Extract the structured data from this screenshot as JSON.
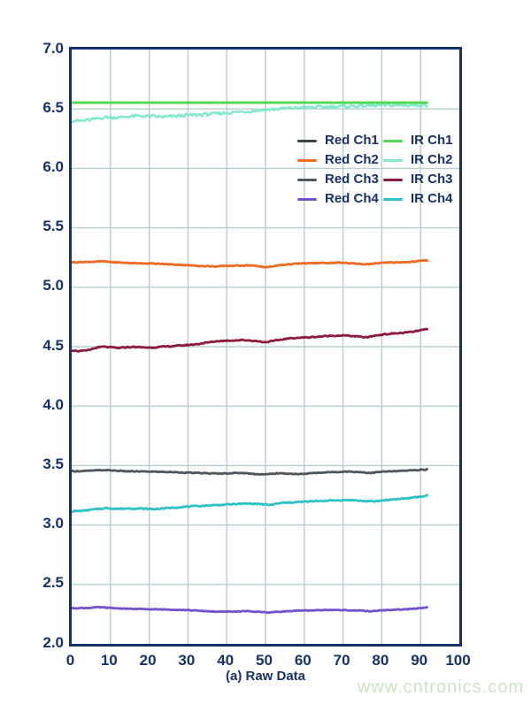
{
  "watermark": {
    "text": "www.cntronics.com",
    "color": "#cfe3c4"
  },
  "colors": {
    "axis_border": "#16316b",
    "text_navy": "#16316b",
    "gridline": "#b5ced2",
    "background": "#ffffff"
  },
  "legend": {
    "col1": [
      "Red Ch1",
      "Red Ch2",
      "Red Ch3",
      "Red Ch4"
    ],
    "col2": [
      "IR Ch1",
      "IR Ch2",
      "IR Ch3",
      "IR Ch4"
    ]
  },
  "chart_data": {
    "type": "line",
    "title": "",
    "xlabel": "(a) Raw Data",
    "ylabel": "",
    "xlim": [
      0,
      100
    ],
    "ylim": [
      2.0,
      7.0
    ],
    "grid": true,
    "legend_position": "upper-right-inside",
    "x_ticks": [
      "0",
      "10",
      "20",
      "30",
      "40",
      "50",
      "60",
      "70",
      "80",
      "90",
      "100"
    ],
    "y_ticks": [
      "7.0",
      "6.5",
      "6.0",
      "5.5",
      "5.0",
      "4.5",
      "4.0",
      "3.5",
      "3.0",
      "2.5",
      "2.0"
    ],
    "series": [
      {
        "name": "Red Ch1",
        "color": "#3c4146",
        "width": 2.4,
        "noise": 0,
        "points": [
          [
            0,
            6.553
          ],
          [
            92,
            6.553
          ]
        ]
      },
      {
        "name": "IR Ch2",
        "color": "#7eeac9",
        "width": 2.4,
        "noise": 0.013,
        "points": [
          [
            0,
            6.402
          ],
          [
            3,
            6.4
          ],
          [
            6,
            6.415
          ],
          [
            9,
            6.432
          ],
          [
            12,
            6.428
          ],
          [
            15,
            6.438
          ],
          [
            18,
            6.442
          ],
          [
            21,
            6.438
          ],
          [
            24,
            6.432
          ],
          [
            27,
            6.44
          ],
          [
            30,
            6.448
          ],
          [
            33,
            6.452
          ],
          [
            36,
            6.458
          ],
          [
            39,
            6.465
          ],
          [
            42,
            6.472
          ],
          [
            45,
            6.478
          ],
          [
            48,
            6.488
          ],
          [
            51,
            6.495
          ],
          [
            54,
            6.502
          ],
          [
            57,
            6.508
          ],
          [
            60,
            6.512
          ],
          [
            63,
            6.515
          ],
          [
            66,
            6.518
          ],
          [
            69,
            6.52
          ],
          [
            72,
            6.524
          ],
          [
            75,
            6.526
          ],
          [
            78,
            6.528
          ],
          [
            81,
            6.53
          ],
          [
            85,
            6.53
          ],
          [
            89,
            6.532
          ],
          [
            92,
            6.532
          ]
        ]
      },
      {
        "name": "IR Ch1",
        "color": "#4fd94f",
        "width": 2.8,
        "noise": 0.001,
        "points": [
          [
            0,
            6.553
          ],
          [
            92,
            6.553
          ]
        ]
      },
      {
        "name": "Red Ch2",
        "color": "#ef6a21",
        "width": 2.8,
        "noise": 0.0035,
        "points": [
          [
            0,
            5.21
          ],
          [
            4,
            5.213
          ],
          [
            8,
            5.218
          ],
          [
            11,
            5.21
          ],
          [
            14,
            5.205
          ],
          [
            18,
            5.202
          ],
          [
            22,
            5.198
          ],
          [
            26,
            5.192
          ],
          [
            30,
            5.185
          ],
          [
            34,
            5.178
          ],
          [
            37,
            5.175
          ],
          [
            40,
            5.18
          ],
          [
            43,
            5.182
          ],
          [
            46,
            5.185
          ],
          [
            49,
            5.172
          ],
          [
            51,
            5.17
          ],
          [
            54,
            5.188
          ],
          [
            58,
            5.198
          ],
          [
            62,
            5.203
          ],
          [
            66,
            5.205
          ],
          [
            70,
            5.206
          ],
          [
            73,
            5.2
          ],
          [
            76,
            5.193
          ],
          [
            79,
            5.203
          ],
          [
            82,
            5.208
          ],
          [
            85,
            5.21
          ],
          [
            88,
            5.215
          ],
          [
            91,
            5.225
          ],
          [
            92,
            5.228
          ]
        ]
      },
      {
        "name": "IR Ch3",
        "color": "#8e1a3e",
        "width": 2.8,
        "noise": 0.0045,
        "points": [
          [
            0,
            4.47
          ],
          [
            2,
            4.462
          ],
          [
            4,
            4.468
          ],
          [
            6,
            4.488
          ],
          [
            8,
            4.5
          ],
          [
            10,
            4.495
          ],
          [
            12,
            4.488
          ],
          [
            14,
            4.495
          ],
          [
            16,
            4.498
          ],
          [
            18,
            4.495
          ],
          [
            20,
            4.492
          ],
          [
            23,
            4.498
          ],
          [
            26,
            4.505
          ],
          [
            29,
            4.512
          ],
          [
            32,
            4.52
          ],
          [
            35,
            4.535
          ],
          [
            38,
            4.548
          ],
          [
            41,
            4.552
          ],
          [
            44,
            4.556
          ],
          [
            47,
            4.55
          ],
          [
            50,
            4.538
          ],
          [
            52,
            4.548
          ],
          [
            55,
            4.565
          ],
          [
            58,
            4.575
          ],
          [
            61,
            4.578
          ],
          [
            64,
            4.585
          ],
          [
            67,
            4.592
          ],
          [
            70,
            4.595
          ],
          [
            73,
            4.588
          ],
          [
            76,
            4.578
          ],
          [
            79,
            4.598
          ],
          [
            82,
            4.608
          ],
          [
            85,
            4.615
          ],
          [
            88,
            4.625
          ],
          [
            90,
            4.638
          ],
          [
            92,
            4.648
          ]
        ]
      },
      {
        "name": "Red Ch3",
        "color": "#4f575c",
        "width": 2.8,
        "noise": 0.0035,
        "points": [
          [
            0,
            3.452
          ],
          [
            4,
            3.455
          ],
          [
            8,
            3.462
          ],
          [
            11,
            3.458
          ],
          [
            14,
            3.452
          ],
          [
            18,
            3.45
          ],
          [
            22,
            3.448
          ],
          [
            26,
            3.445
          ],
          [
            30,
            3.44
          ],
          [
            34,
            3.436
          ],
          [
            38,
            3.432
          ],
          [
            41,
            3.436
          ],
          [
            44,
            3.438
          ],
          [
            47,
            3.43
          ],
          [
            50,
            3.425
          ],
          [
            53,
            3.435
          ],
          [
            56,
            3.432
          ],
          [
            59,
            3.428
          ],
          [
            62,
            3.436
          ],
          [
            65,
            3.442
          ],
          [
            68,
            3.446
          ],
          [
            71,
            3.45
          ],
          [
            74,
            3.446
          ],
          [
            77,
            3.438
          ],
          [
            80,
            3.448
          ],
          [
            83,
            3.452
          ],
          [
            86,
            3.456
          ],
          [
            89,
            3.462
          ],
          [
            92,
            3.468
          ]
        ]
      },
      {
        "name": "IR Ch4",
        "color": "#2ec2c6",
        "width": 2.8,
        "noise": 0.0045,
        "points": [
          [
            0,
            3.115
          ],
          [
            3,
            3.12
          ],
          [
            6,
            3.132
          ],
          [
            9,
            3.142
          ],
          [
            12,
            3.136
          ],
          [
            15,
            3.14
          ],
          [
            18,
            3.138
          ],
          [
            21,
            3.134
          ],
          [
            24,
            3.14
          ],
          [
            27,
            3.148
          ],
          [
            30,
            3.155
          ],
          [
            33,
            3.16
          ],
          [
            36,
            3.166
          ],
          [
            39,
            3.17
          ],
          [
            42,
            3.176
          ],
          [
            45,
            3.18
          ],
          [
            48,
            3.178
          ],
          [
            51,
            3.168
          ],
          [
            54,
            3.185
          ],
          [
            57,
            3.19
          ],
          [
            60,
            3.196
          ],
          [
            63,
            3.2
          ],
          [
            66,
            3.205
          ],
          [
            69,
            3.208
          ],
          [
            72,
            3.21
          ],
          [
            75,
            3.202
          ],
          [
            78,
            3.198
          ],
          [
            81,
            3.21
          ],
          [
            84,
            3.218
          ],
          [
            87,
            3.226
          ],
          [
            90,
            3.238
          ],
          [
            92,
            3.25
          ]
        ]
      },
      {
        "name": "Red Ch4",
        "color": "#7551cd",
        "width": 2.8,
        "noise": 0.003,
        "points": [
          [
            0,
            2.3
          ],
          [
            4,
            2.302
          ],
          [
            7,
            2.308
          ],
          [
            10,
            2.302
          ],
          [
            14,
            2.296
          ],
          [
            18,
            2.292
          ],
          [
            22,
            2.29
          ],
          [
            26,
            2.288
          ],
          [
            30,
            2.284
          ],
          [
            34,
            2.276
          ],
          [
            38,
            2.27
          ],
          [
            42,
            2.272
          ],
          [
            45,
            2.275
          ],
          [
            48,
            2.27
          ],
          [
            51,
            2.264
          ],
          [
            54,
            2.272
          ],
          [
            58,
            2.278
          ],
          [
            62,
            2.282
          ],
          [
            66,
            2.285
          ],
          [
            70,
            2.284
          ],
          [
            74,
            2.28
          ],
          [
            77,
            2.274
          ],
          [
            80,
            2.282
          ],
          [
            84,
            2.288
          ],
          [
            87,
            2.292
          ],
          [
            90,
            2.3
          ],
          [
            92,
            2.312
          ]
        ]
      }
    ]
  }
}
